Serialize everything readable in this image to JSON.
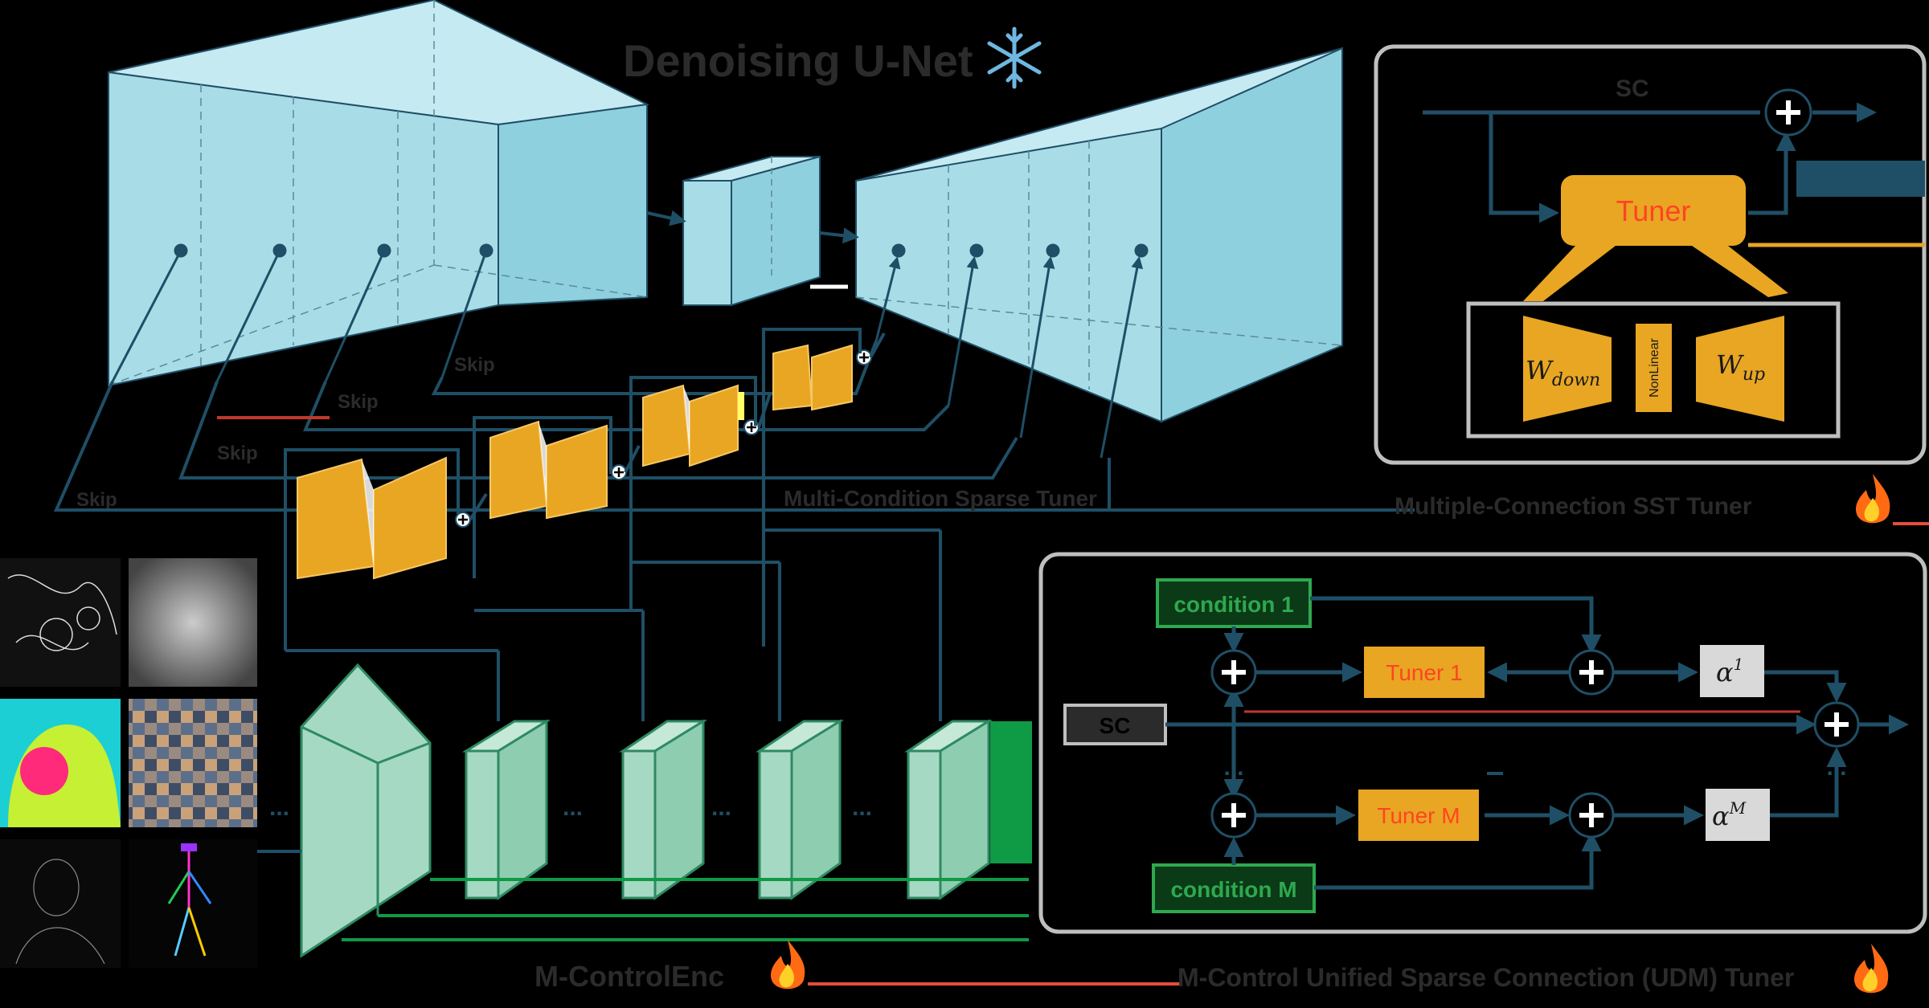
{
  "titles": {
    "unet_title": "Denoising U-Net",
    "control_encoder": "M-ControlEnc",
    "mcst": "Multi-Condition Sparse Tuner",
    "tuner_caption": "Multiple-Connection SST Tuner",
    "unified_caption": "M-Control Unified Sparse Connection (UDM) Tuner"
  },
  "labels": {
    "skip_1": "Skip",
    "skip_2": "Skip",
    "skip_3": "Skip",
    "skip_4": "Skip",
    "sc_label": "SC",
    "tuner": "Tuner",
    "w_down_main": "W",
    "w_down_sub": "down",
    "nonlinear": "NonLinear",
    "w_up_main": "W",
    "w_up_sub": "up",
    "condition_1": "condition 1",
    "condition_m": "condition M",
    "tuner_1": "Tuner 1",
    "tuner_m": "Tuner M",
    "alpha_base": "α",
    "alpha_1_sup": "1",
    "alpha_m_sup": "M",
    "sc_box": "SC",
    "dots_1": "...",
    "dots_2": "...",
    "dots_3": "...",
    "dots_4": "...",
    "vdots_1": "...",
    "vdots_2": "..."
  },
  "icons": [
    "snowflake-icon",
    "fire-icon",
    "plus-icon"
  ],
  "colors": {
    "unet": "#a8dde8",
    "tuner": "#e8a623",
    "encoder": "#a6d9c3",
    "line": "#1f4f66",
    "frame": "#bfbfbf",
    "condition": "#2fa84f",
    "tuner_text": "#ff4422"
  }
}
